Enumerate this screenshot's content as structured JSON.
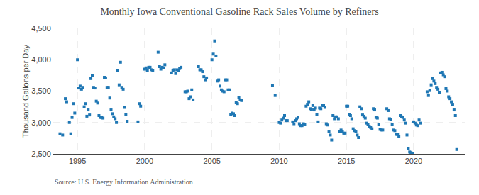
{
  "chart_data": {
    "type": "scatter",
    "title": "Monthly Iowa Conventional Gasoline Rack Sales Volume by Refiners",
    "ylabel": "Thousand Gallons per Day",
    "annotations": [
      "Source: U.S. Energy Information Administration"
    ],
    "marker": "square",
    "grid": true,
    "xlim": [
      1993.2,
      2023.8
    ],
    "xticks": [
      1995,
      2000,
      2005,
      2010,
      2015,
      2020
    ],
    "ylim": [
      2500,
      4500
    ],
    "yticks": [
      {
        "value": 2500,
        "label": "2,500"
      },
      {
        "value": 3000,
        "label": "3,000"
      },
      {
        "value": 3500,
        "label": "3,500"
      },
      {
        "value": 4000,
        "label": "4,000"
      },
      {
        "value": 4500,
        "label": "4,500"
      }
    ],
    "x": [
      1993.7,
      1993.9,
      1994.1,
      1994.2,
      1994.4,
      1994.5,
      1994.6,
      1994.7,
      1994.8,
      1995.0,
      1995.1,
      1995.2,
      1995.3,
      1995.4,
      1995.5,
      1995.6,
      1995.7,
      1995.8,
      1995.9,
      1996.0,
      1996.1,
      1996.2,
      1996.3,
      1996.4,
      1996.5,
      1996.6,
      1996.7,
      1996.8,
      1996.9,
      1997.0,
      1997.1,
      1997.2,
      1997.3,
      1997.4,
      1997.5,
      1997.6,
      1997.7,
      1997.8,
      1997.9,
      1998.0,
      1998.1,
      1998.2,
      1998.3,
      1998.4,
      1998.5,
      1998.6,
      1998.7,
      1999.5,
      1999.6,
      1999.7,
      2000.0,
      2000.1,
      2000.2,
      2000.3,
      2000.4,
      2000.5,
      2000.6,
      2001.0,
      2001.1,
      2001.2,
      2001.3,
      2001.4,
      2001.5,
      2002.0,
      2002.1,
      2002.2,
      2002.3,
      2002.4,
      2002.5,
      2002.6,
      2002.7,
      2003.0,
      2003.1,
      2003.2,
      2003.3,
      2003.4,
      2003.5,
      2003.6,
      2004.0,
      2004.1,
      2004.2,
      2004.3,
      2004.4,
      2004.5,
      2004.6,
      2005.0,
      2005.1,
      2005.2,
      2005.3,
      2005.4,
      2005.5,
      2005.6,
      2005.7,
      2005.8,
      2005.9,
      2006.0,
      2006.1,
      2006.2,
      2006.3,
      2006.4,
      2006.5,
      2006.6,
      2006.7,
      2006.8,
      2006.9,
      2007.0,
      2007.1,
      2007.2,
      2009.5,
      2009.7,
      2010.0,
      2010.1,
      2010.2,
      2010.3,
      2010.4,
      2010.5,
      2010.6,
      2011.0,
      2011.1,
      2011.2,
      2011.3,
      2011.4,
      2011.5,
      2011.6,
      2011.7,
      2011.8,
      2011.9,
      2012.0,
      2012.1,
      2012.2,
      2012.3,
      2012.4,
      2012.5,
      2012.6,
      2012.7,
      2012.8,
      2012.9,
      2013.0,
      2013.1,
      2013.2,
      2013.3,
      2013.4,
      2013.5,
      2013.6,
      2013.7,
      2013.8,
      2013.9,
      2014.0,
      2014.1,
      2014.2,
      2014.3,
      2014.4,
      2014.5,
      2014.6,
      2014.7,
      2014.8,
      2014.9,
      2015.0,
      2015.1,
      2015.2,
      2015.3,
      2015.4,
      2015.5,
      2015.6,
      2015.7,
      2015.8,
      2015.9,
      2016.0,
      2016.1,
      2016.2,
      2016.3,
      2016.4,
      2016.5,
      2016.6,
      2016.7,
      2016.8,
      2016.9,
      2017.0,
      2017.1,
      2017.2,
      2017.3,
      2017.4,
      2017.5,
      2017.6,
      2017.7,
      2018.0,
      2018.1,
      2018.2,
      2018.3,
      2018.4,
      2018.5,
      2018.6,
      2018.7,
      2018.8,
      2018.9,
      2019.0,
      2019.1,
      2019.2,
      2019.3,
      2019.4,
      2019.5,
      2019.6,
      2019.7,
      2019.8,
      2019.9,
      2020.0,
      2020.1,
      2020.2,
      2020.3,
      2020.4,
      2020.5,
      2021.0,
      2021.1,
      2021.2,
      2021.3,
      2021.4,
      2021.5,
      2021.6,
      2021.7,
      2021.8,
      2021.9,
      2022.0,
      2022.1,
      2022.2,
      2022.3,
      2022.4,
      2022.5,
      2022.6,
      2022.7,
      2022.8,
      2022.9,
      2023.0,
      2023.1,
      2023.2
    ],
    "values": [
      2820,
      2800,
      3380,
      3330,
      3000,
      2820,
      3080,
      3300,
      3150,
      4000,
      3550,
      3580,
      3530,
      3560,
      3250,
      3300,
      3100,
      3200,
      3120,
      3700,
      3750,
      3560,
      3550,
      3340,
      3310,
      3110,
      3080,
      3080,
      3070,
      3720,
      3710,
      3560,
      3560,
      3390,
      3200,
      3140,
      3090,
      3060,
      3000,
      3830,
      3600,
      3960,
      3560,
      3530,
      3240,
      3130,
      3020,
      3010,
      3300,
      3260,
      3850,
      3870,
      3830,
      3880,
      3880,
      3840,
      3830,
      4120,
      3890,
      3850,
      3880,
      3870,
      3920,
      3790,
      3830,
      3840,
      3780,
      3840,
      3830,
      3860,
      3880,
      3490,
      3490,
      3500,
      3380,
      3410,
      3520,
      3360,
      3890,
      3840,
      3840,
      3810,
      3730,
      3680,
      3710,
      4000,
      4090,
      4300,
      4060,
      3660,
      3680,
      3580,
      3520,
      3500,
      3490,
      3680,
      3680,
      3520,
      3520,
      3130,
      3150,
      3140,
      3110,
      3320,
      3300,
      3400,
      3360,
      3350,
      3590,
      3430,
      3000,
      2990,
      3040,
      3070,
      3110,
      3030,
      3030,
      3010,
      2980,
      3030,
      3060,
      3080,
      2980,
      2950,
      2950,
      2980,
      2970,
      3260,
      3290,
      3330,
      3220,
      3210,
      3270,
      3200,
      3230,
      3130,
      3010,
      3230,
      3220,
      3270,
      3270,
      3240,
      2980,
      2960,
      2850,
      2800,
      2720,
      3110,
      3060,
      3090,
      3090,
      3060,
      2860,
      2880,
      2850,
      2830,
      2830,
      3260,
      3260,
      3130,
      3110,
      3060,
      2900,
      2870,
      2850,
      2800,
      2760,
      3250,
      3220,
      3120,
      3100,
      3070,
      2990,
      2970,
      2940,
      2920,
      2900,
      3220,
      3200,
      3080,
      3070,
      2970,
      2890,
      2880,
      2880,
      3220,
      3190,
      3060,
      3050,
      2970,
      2880,
      2870,
      2810,
      2810,
      2780,
      3110,
      3090,
      3080,
      3040,
      2990,
      2800,
      2590,
      2530,
      2520,
      2510,
      3010,
      2990,
      2960,
      2950,
      3040,
      2990,
      3490,
      3430,
      3510,
      3600,
      3700,
      3660,
      3620,
      3560,
      3530,
      3480,
      3790,
      3800,
      3760,
      3730,
      3540,
      3500,
      3410,
      3380,
      3330,
      3290,
      3200,
      3110,
      2570
    ]
  }
}
